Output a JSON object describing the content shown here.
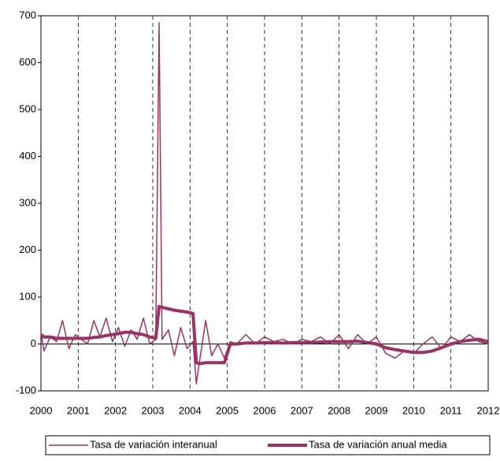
{
  "chart_data": {
    "type": "line",
    "x": [
      2000,
      2000.08,
      2000.25,
      2000.42,
      2000.58,
      2000.75,
      2000.92,
      2001.08,
      2001.25,
      2001.42,
      2001.58,
      2001.75,
      2001.92,
      2002.08,
      2002.25,
      2002.42,
      2002.58,
      2002.75,
      2002.92,
      2003.08,
      2003.17,
      2003.25,
      2003.42,
      2003.58,
      2003.75,
      2003.92,
      2004.08,
      2004.17,
      2004.25,
      2004.42,
      2004.58,
      2004.75,
      2004.92,
      2005.08,
      2005.25,
      2005.5,
      2005.75,
      2006,
      2006.25,
      2006.5,
      2006.75,
      2007,
      2007.25,
      2007.5,
      2007.75,
      2008,
      2008.25,
      2008.5,
      2008.75,
      2009,
      2009.25,
      2009.5,
      2009.75,
      2010,
      2010.25,
      2010.5,
      2010.75,
      2011,
      2011.25,
      2011.5,
      2011.75,
      2012
    ],
    "series": [
      {
        "name": "Tasa de variación interanual",
        "color": "#993366",
        "width": 1.5,
        "values": [
          25,
          -15,
          15,
          5,
          50,
          -10,
          20,
          10,
          0,
          50,
          15,
          55,
          5,
          35,
          -5,
          30,
          10,
          55,
          0,
          10,
          685,
          10,
          30,
          -25,
          35,
          -10,
          5,
          -85,
          -40,
          50,
          -25,
          0,
          -30,
          5,
          0,
          20,
          0,
          15,
          5,
          10,
          0,
          10,
          5,
          15,
          0,
          20,
          -10,
          20,
          0,
          15,
          -20,
          -30,
          -15,
          -20,
          0,
          15,
          -10,
          15,
          5,
          20,
          5,
          0
        ]
      },
      {
        "name": "Tasa de variación anual media",
        "color": "#993366",
        "width": 4,
        "values": [
          20,
          15,
          15,
          12,
          12,
          12,
          12,
          12,
          12,
          14,
          15,
          18,
          20,
          22,
          25,
          25,
          22,
          20,
          15,
          12,
          80,
          78,
          75,
          72,
          70,
          68,
          65,
          -40,
          -42,
          -40,
          -40,
          -40,
          -40,
          0,
          0,
          2,
          2,
          3,
          3,
          2,
          3,
          3,
          3,
          4,
          5,
          5,
          5,
          6,
          3,
          0,
          -8,
          -12,
          -15,
          -18,
          -18,
          -15,
          -8,
          0,
          5,
          8,
          10,
          5
        ]
      }
    ],
    "xlim": [
      2000,
      2012
    ],
    "xticks": [
      2000,
      2001,
      2002,
      2003,
      2004,
      2005,
      2006,
      2007,
      2008,
      2009,
      2010,
      2011,
      2012
    ],
    "ylim": [
      -100,
      700
    ],
    "yticks": [
      -100,
      0,
      100,
      200,
      300,
      400,
      500,
      600,
      700
    ],
    "grid": true,
    "legend": "bottom"
  }
}
